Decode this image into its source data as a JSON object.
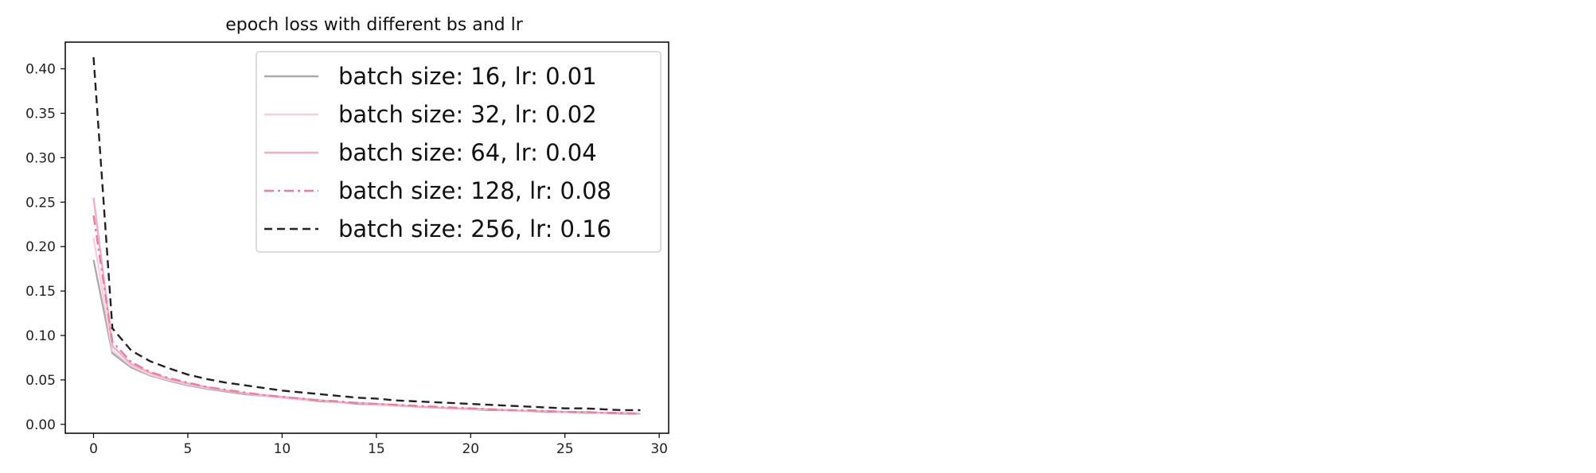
{
  "chart_data": {
    "type": "line",
    "title": "epoch loss with different bs and lr",
    "xlabel": "",
    "ylabel": "",
    "xlim": [
      -1.5,
      30.5
    ],
    "ylim": [
      -0.01,
      0.43
    ],
    "xticks": [
      0,
      5,
      10,
      15,
      20,
      25,
      30
    ],
    "yticks": [
      0.0,
      0.05,
      0.1,
      0.15,
      0.2,
      0.25,
      0.3,
      0.35,
      0.4
    ],
    "ytick_labels": [
      "0.00",
      "0.05",
      "0.10",
      "0.15",
      "0.20",
      "0.25",
      "0.30",
      "0.35",
      "0.40"
    ],
    "grid": false,
    "legend_position": "upper-right",
    "x": [
      0,
      1,
      2,
      3,
      4,
      5,
      6,
      7,
      8,
      9,
      10,
      11,
      12,
      13,
      14,
      15,
      16,
      17,
      18,
      19,
      20,
      21,
      22,
      23,
      24,
      25,
      26,
      27,
      28,
      29
    ],
    "series": [
      {
        "name": "batch size: 16, lr: 0.01",
        "color": "#aaaaaa",
        "style": "solid",
        "values": [
          0.185,
          0.08,
          0.064,
          0.055,
          0.049,
          0.044,
          0.04,
          0.037,
          0.034,
          0.032,
          0.03,
          0.028,
          0.026,
          0.025,
          0.023,
          0.022,
          0.021,
          0.02,
          0.019,
          0.018,
          0.017,
          0.016,
          0.016,
          0.015,
          0.014,
          0.014,
          0.013,
          0.013,
          0.012,
          0.012
        ]
      },
      {
        "name": "batch size: 32, lr: 0.02",
        "color": "#f8d0dc",
        "style": "solid",
        "values": [
          0.21,
          0.083,
          0.066,
          0.056,
          0.05,
          0.045,
          0.041,
          0.038,
          0.035,
          0.032,
          0.03,
          0.028,
          0.027,
          0.025,
          0.024,
          0.022,
          0.021,
          0.02,
          0.019,
          0.018,
          0.017,
          0.017,
          0.016,
          0.015,
          0.015,
          0.014,
          0.014,
          0.013,
          0.013,
          0.012
        ]
      },
      {
        "name": "batch size: 64, lr: 0.04",
        "color": "#eeaec5",
        "style": "solid",
        "values": [
          0.255,
          0.088,
          0.068,
          0.058,
          0.051,
          0.046,
          0.042,
          0.038,
          0.035,
          0.033,
          0.031,
          0.029,
          0.027,
          0.025,
          0.024,
          0.023,
          0.022,
          0.02,
          0.019,
          0.018,
          0.018,
          0.017,
          0.016,
          0.015,
          0.015,
          0.014,
          0.014,
          0.013,
          0.013,
          0.012
        ]
      },
      {
        "name": "batch size: 128, lr: 0.08",
        "color": "#f07aa5",
        "style": "dashdot",
        "values": [
          0.235,
          0.093,
          0.07,
          0.059,
          0.052,
          0.047,
          0.042,
          0.039,
          0.036,
          0.033,
          0.031,
          0.029,
          0.027,
          0.026,
          0.024,
          0.023,
          0.022,
          0.021,
          0.02,
          0.019,
          0.018,
          0.017,
          0.016,
          0.016,
          0.015,
          0.014,
          0.014,
          0.013,
          0.013,
          0.012
        ]
      },
      {
        "name": "batch size: 256, lr: 0.16",
        "color": "#222222",
        "style": "dashed",
        "values": [
          0.413,
          0.108,
          0.083,
          0.071,
          0.063,
          0.056,
          0.051,
          0.047,
          0.044,
          0.041,
          0.038,
          0.036,
          0.034,
          0.032,
          0.03,
          0.029,
          0.027,
          0.026,
          0.025,
          0.024,
          0.023,
          0.022,
          0.021,
          0.02,
          0.019,
          0.018,
          0.018,
          0.017,
          0.016,
          0.016
        ]
      }
    ]
  }
}
